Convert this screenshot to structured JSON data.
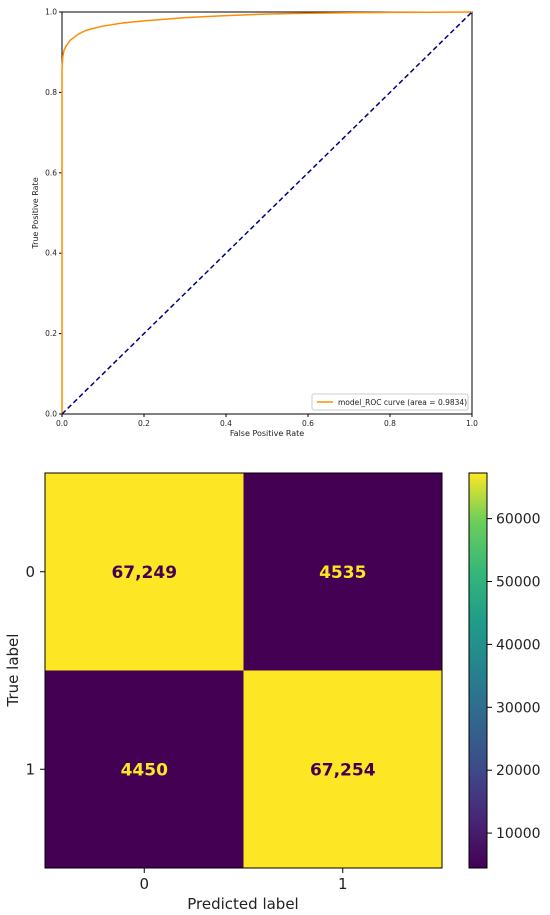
{
  "chart_data": [
    {
      "type": "line",
      "xlabel": "False Positive Rate",
      "ylabel": "True Positive Rate",
      "xlim": [
        0.0,
        1.0
      ],
      "ylim": [
        0.0,
        1.0
      ],
      "xticks": [
        "0.0",
        "0.2",
        "0.4",
        "0.6",
        "0.8",
        "1.0"
      ],
      "yticks": [
        "0.0",
        "0.2",
        "0.4",
        "0.6",
        "0.8",
        "1.0"
      ],
      "grid": false,
      "legend_position": "lower-right",
      "series": [
        {
          "name": "model_ROC curve (area = 0.9834)",
          "color": "#ff8c00",
          "style": "solid",
          "x": [
            0.0,
            0.0,
            0.002,
            0.005,
            0.01,
            0.02,
            0.04,
            0.06,
            0.1,
            0.15,
            0.2,
            0.3,
            0.4,
            0.5,
            0.6,
            0.7,
            0.8,
            0.9,
            1.0
          ],
          "y": [
            0.0,
            0.86,
            0.89,
            0.905,
            0.915,
            0.93,
            0.945,
            0.955,
            0.965,
            0.973,
            0.978,
            0.986,
            0.991,
            0.995,
            0.997,
            0.998,
            0.999,
            0.9995,
            1.0
          ]
        },
        {
          "name": "",
          "color": "#000080",
          "style": "dashed",
          "x": [
            0.0,
            1.0
          ],
          "y": [
            0.0,
            1.0
          ]
        }
      ]
    },
    {
      "type": "heatmap",
      "xlabel": "Predicted label",
      "ylabel": "True label",
      "x_categories": [
        "0",
        "1"
      ],
      "y_categories": [
        "0",
        "1"
      ],
      "values": [
        [
          67249,
          4535
        ],
        [
          4450,
          67254
        ]
      ],
      "cell_labels": [
        [
          "67,249",
          "4535"
        ],
        [
          "4450",
          "67,254"
        ]
      ],
      "colormap": "viridis",
      "colorbar_ticks": [
        "60000",
        "50000",
        "40000",
        "30000",
        "20000",
        "10000"
      ],
      "colorbar_range": [
        4450,
        67254
      ]
    }
  ]
}
